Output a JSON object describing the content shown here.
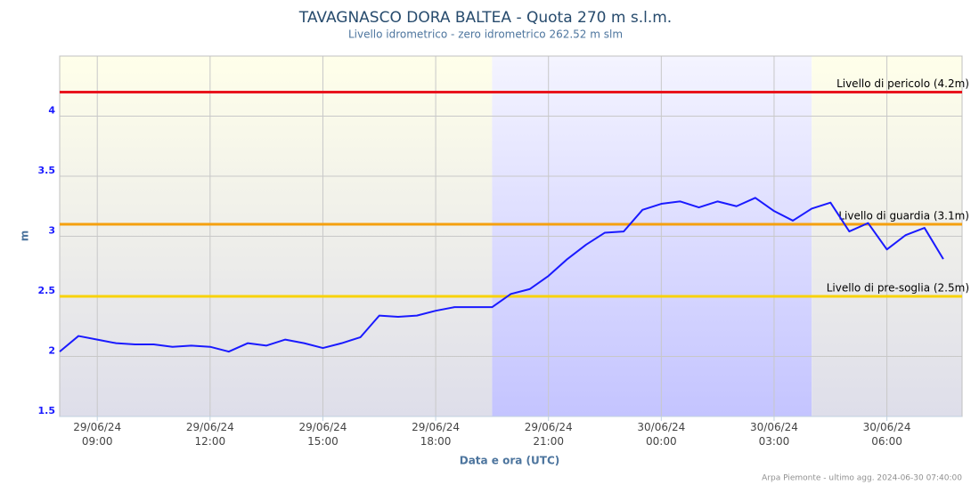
{
  "chart_data": {
    "type": "line",
    "title": "TAVAGNASCO DORA BALTEA - Quota 270 m s.l.m.",
    "subtitle": "Livello idrometrico - zero idrometrico 262.52 m slm",
    "x_label": "Data e ora (UTC)",
    "y_label": "m",
    "footer": "Arpa Piemonte - ultimo agg. 2024-06-30 07:40:00",
    "x": [
      "29/06/24 08:00",
      "29/06/24 08:30",
      "29/06/24 09:00",
      "29/06/24 09:30",
      "29/06/24 10:00",
      "29/06/24 10:30",
      "29/06/24 11:00",
      "29/06/24 11:30",
      "29/06/24 12:00",
      "29/06/24 12:30",
      "29/06/24 13:00",
      "29/06/24 13:30",
      "29/06/24 14:00",
      "29/06/24 14:30",
      "29/06/24 15:00",
      "29/06/24 15:30",
      "29/06/24 16:00",
      "29/06/24 16:30",
      "29/06/24 17:00",
      "29/06/24 17:30",
      "29/06/24 18:00",
      "29/06/24 18:30",
      "29/06/24 19:00",
      "29/06/24 19:30",
      "29/06/24 20:00",
      "29/06/24 20:30",
      "29/06/24 21:00",
      "29/06/24 21:30",
      "29/06/24 22:00",
      "29/06/24 22:30",
      "29/06/24 23:00",
      "29/06/24 23:30",
      "30/06/24 00:00",
      "30/06/24 00:30",
      "30/06/24 01:00",
      "30/06/24 01:30",
      "30/06/24 02:00",
      "30/06/24 02:30",
      "30/06/24 03:00",
      "30/06/24 03:30",
      "30/06/24 04:00",
      "30/06/24 04:30",
      "30/06/24 05:00",
      "30/06/24 05:30",
      "30/06/24 06:00",
      "30/06/24 06:30",
      "30/06/24 07:00",
      "30/06/24 07:30"
    ],
    "series": [
      {
        "color": "#1a1aff",
        "values": [
          2.04,
          2.17,
          2.14,
          2.11,
          2.1,
          2.1,
          2.08,
          2.09,
          2.08,
          2.04,
          2.11,
          2.09,
          2.14,
          2.11,
          2.07,
          2.11,
          2.16,
          2.34,
          2.33,
          2.34,
          2.38,
          2.41,
          2.41,
          2.41,
          2.52,
          2.56,
          2.67,
          2.81,
          2.93,
          3.03,
          3.04,
          3.22,
          3.27,
          3.29,
          3.24,
          3.29,
          3.25,
          3.32,
          3.21,
          3.13,
          3.23,
          3.28,
          3.04,
          3.11,
          2.89,
          3.01,
          3.07,
          2.81
        ]
      }
    ],
    "xlim": [
      "29/06/24 08:00",
      "30/06/24 08:00"
    ],
    "xticks": [
      {
        "value": "29/06/24 09:00",
        "label": [
          "29/06/24",
          "09:00"
        ]
      },
      {
        "value": "29/06/24 12:00",
        "label": [
          "29/06/24",
          "12:00"
        ]
      },
      {
        "value": "29/06/24 15:00",
        "label": [
          "29/06/24",
          "15:00"
        ]
      },
      {
        "value": "29/06/24 18:00",
        "label": [
          "29/06/24",
          "18:00"
        ]
      },
      {
        "value": "29/06/24 21:00",
        "label": [
          "29/06/24",
          "21:00"
        ]
      },
      {
        "value": "30/06/24 00:00",
        "label": [
          "30/06/24",
          "00:00"
        ]
      },
      {
        "value": "30/06/24 03:00",
        "label": [
          "30/06/24",
          "03:00"
        ]
      },
      {
        "value": "30/06/24 06:00",
        "label": [
          "30/06/24",
          "06:00"
        ]
      }
    ],
    "ylim": [
      1.5,
      4.5
    ],
    "yticks": [
      1.5,
      2,
      2.5,
      3,
      3.5,
      4
    ],
    "grid": true,
    "bands": [
      {
        "from": "29/06/24 08:00",
        "to": "29/06/24 19:30",
        "color": "#fdfde6"
      },
      {
        "from": "29/06/24 19:30",
        "to": "30/06/24 04:00",
        "color": "#c8c8ff"
      },
      {
        "from": "30/06/24 04:00",
        "to": "30/06/24 08:00",
        "color": "#fdfde6"
      }
    ],
    "thresholds": [
      {
        "value": 4.2,
        "label": "Livello di pericolo (4.2m)",
        "color": "#e8141c"
      },
      {
        "value": 3.1,
        "label": "Livello di guardia (3.1m)",
        "color": "#f5a00f"
      },
      {
        "value": 2.5,
        "label": "Livello di pre-soglia (2.5m)",
        "color": "#f8d208"
      }
    ]
  }
}
